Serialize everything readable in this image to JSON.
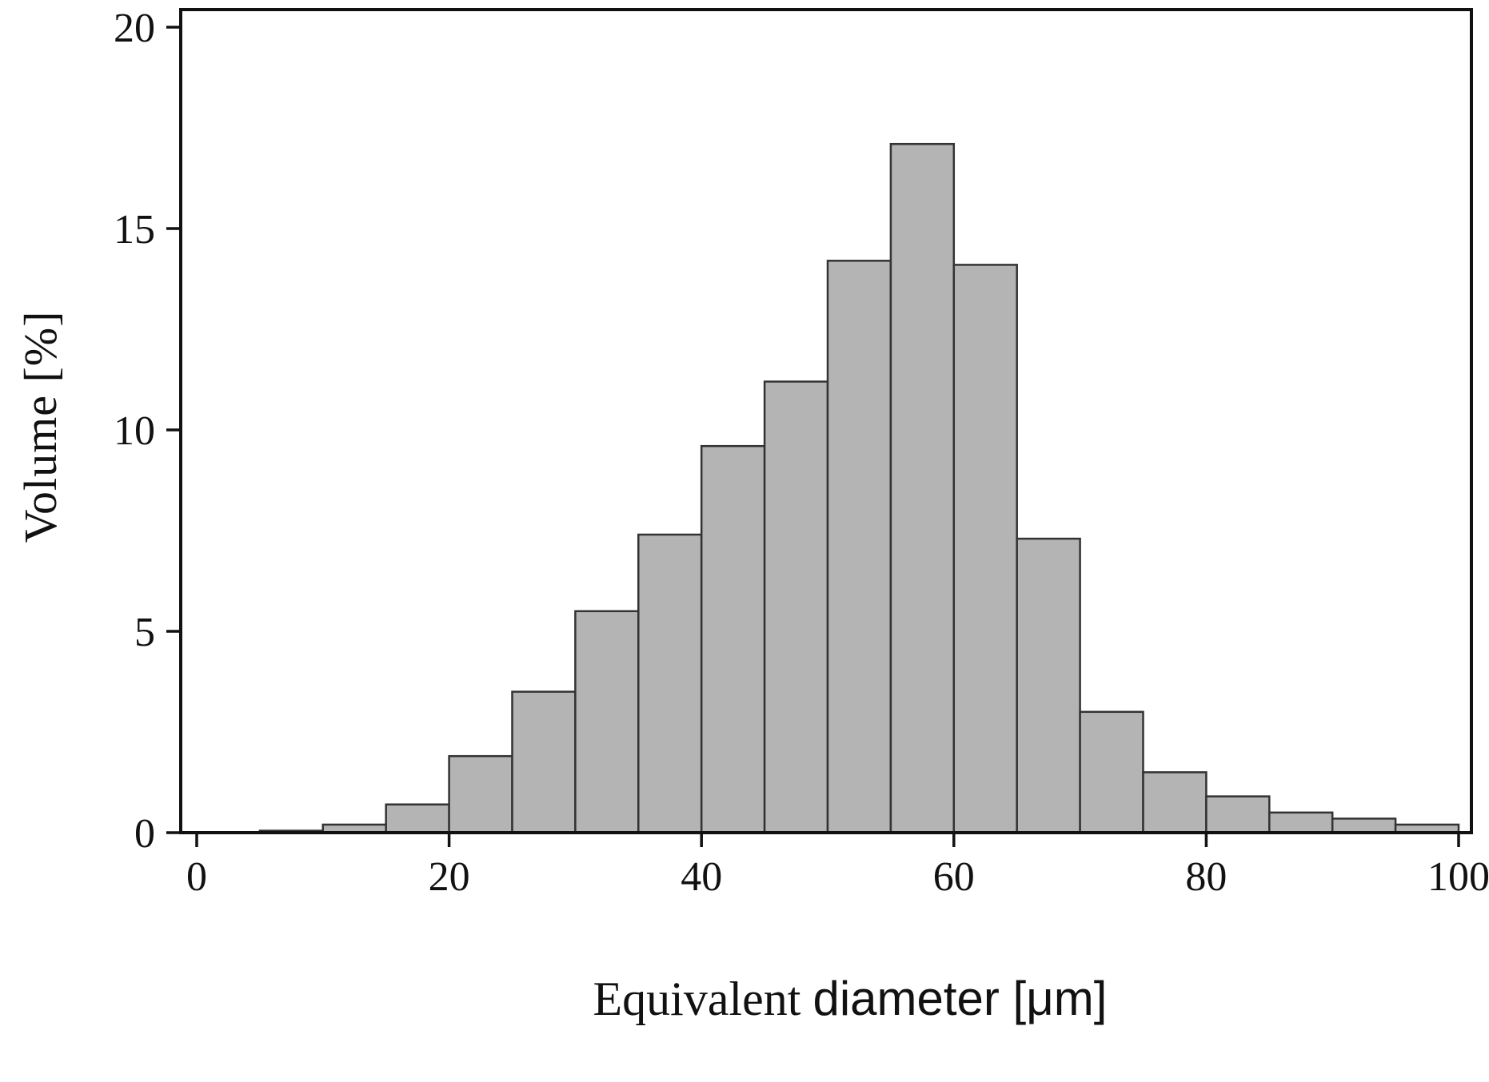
{
  "chart_data": {
    "type": "bar",
    "title": "",
    "xlabel": "Equivalent diameter [μm]",
    "xlabel_serif_part": "Equivalent ",
    "xlabel_sans_part": "diameter [μm]",
    "ylabel": "Volume [%]",
    "bin_width": 5,
    "bin_start": 5,
    "bin_edges": [
      5,
      10,
      15,
      20,
      25,
      30,
      35,
      40,
      45,
      50,
      55,
      60,
      65,
      70,
      75,
      80,
      85,
      90,
      95,
      100
    ],
    "values": [
      0.05,
      0.2,
      0.7,
      1.9,
      3.5,
      5.5,
      7.4,
      9.6,
      11.2,
      14.2,
      17.1,
      14.1,
      7.3,
      3.0,
      1.5,
      0.9,
      0.5,
      0.35,
      0.2
    ],
    "x_ticks": [
      0,
      20,
      40,
      60,
      80,
      100
    ],
    "y_ticks": [
      0,
      5,
      10,
      15,
      20
    ],
    "xlim": [
      0,
      100
    ],
    "ylim": [
      0,
      20
    ],
    "grid": false,
    "legend": false,
    "bar_fill": "#b4b4b4",
    "bar_stroke": "#333333",
    "axis_color": "#111111",
    "background": "#ffffff"
  }
}
